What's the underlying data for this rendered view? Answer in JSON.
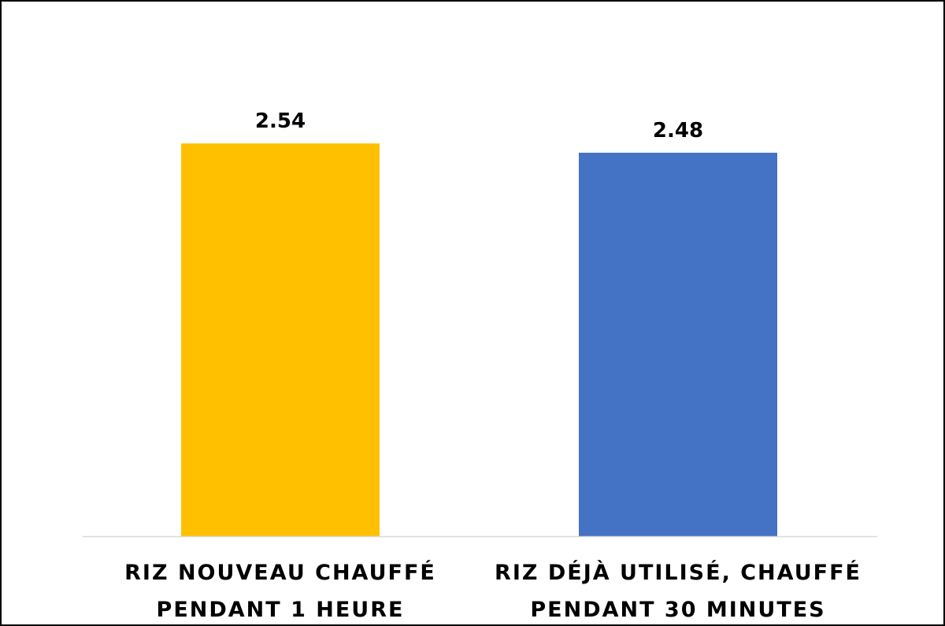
{
  "chart_data": {
    "type": "bar",
    "categories": [
      [
        "RIZ NOUVEAU CHAUFFÉ",
        "PENDANT 1 HEURE"
      ],
      [
        "RIZ DÉJÀ UTILISÉ, CHAUFFÉ",
        "PENDANT 30 MINUTES"
      ]
    ],
    "values": [
      2.54,
      2.48
    ],
    "data_labels": [
      "2.54",
      "2.48"
    ],
    "colors": [
      "#FFC000",
      "#4472C4"
    ],
    "title": "",
    "xlabel": "",
    "ylabel": "",
    "ylim": [
      0,
      3.05
    ],
    "grid": false,
    "legend": "none",
    "axis_line_color": "#D9D9D9"
  }
}
